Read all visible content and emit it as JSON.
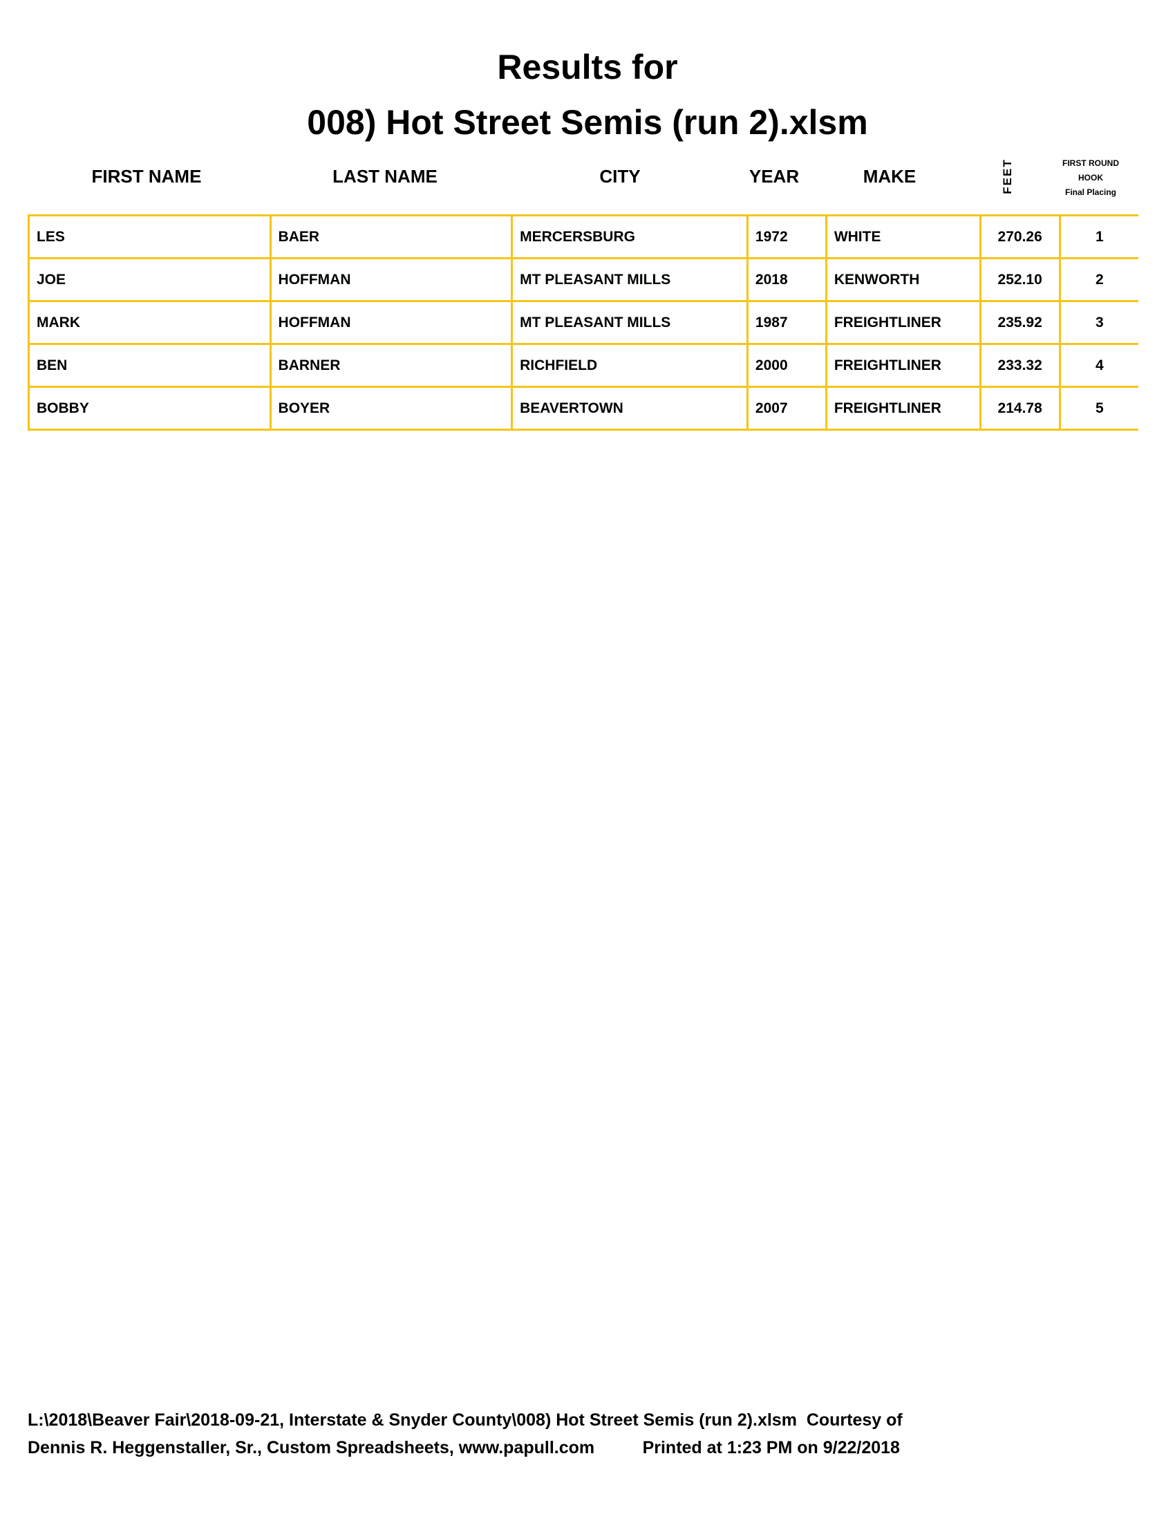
{
  "title_line1": "Results for",
  "title_line2": "008) Hot Street Semis (run 2).xlsm",
  "headers": {
    "first_name": "FIRST NAME",
    "last_name": "LAST NAME",
    "city": "CITY",
    "year": "YEAR",
    "make": "MAKE",
    "feet": "FEET",
    "round1": "FIRST ROUND",
    "round2": "HOOK",
    "round3": "Final Placing"
  },
  "rows": [
    {
      "first": "LES",
      "last": "BAER",
      "city": "MERCERSBURG",
      "year": "1972",
      "make": "WHITE",
      "feet": "270.26",
      "place": "1"
    },
    {
      "first": "JOE",
      "last": "HOFFMAN",
      "city": "MT PLEASANT MILLS",
      "year": "2018",
      "make": "KENWORTH",
      "feet": "252.10",
      "place": "2"
    },
    {
      "first": "MARK",
      "last": "HOFFMAN",
      "city": "MT PLEASANT MILLS",
      "year": "1987",
      "make": "FREIGHTLINER",
      "feet": "235.92",
      "place": "3"
    },
    {
      "first": "BEN",
      "last": "BARNER",
      "city": "RICHFIELD",
      "year": "2000",
      "make": "FREIGHTLINER",
      "feet": "233.32",
      "place": "4"
    },
    {
      "first": "BOBBY",
      "last": "BOYER",
      "city": "BEAVERTOWN",
      "year": "2007",
      "make": "FREIGHTLINER",
      "feet": "214.78",
      "place": "5"
    }
  ],
  "footer": {
    "line1": "L:\\2018\\Beaver Fair\\2018-09-21, Interstate & Snyder County\\008) Hot Street Semis (run 2).xlsm  Courtesy of",
    "line2": "Dennis R. Heggenstaller, Sr., Custom Spreadsheets, www.papull.com          Printed at 1:23 PM on 9/22/2018"
  },
  "colors": {
    "grid": "#f5c518"
  }
}
